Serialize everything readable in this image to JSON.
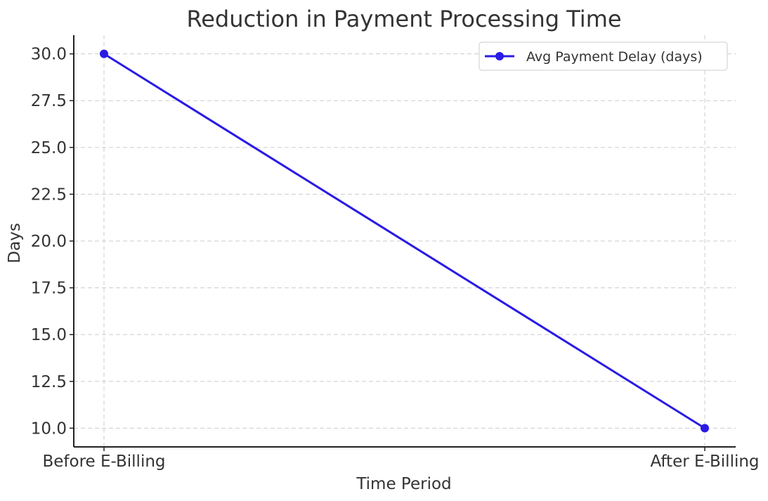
{
  "chart_data": {
    "type": "line",
    "title": "Reduction in Payment Processing Time",
    "xlabel": "Time Period",
    "ylabel": "Days",
    "categories": [
      "Before E-Billing",
      "After E-Billing"
    ],
    "series": [
      {
        "name": "Avg Payment Delay (days)",
        "values": [
          30,
          10
        ],
        "color": "#2a1be6"
      }
    ],
    "ylim": [
      9.0,
      31.0
    ],
    "yticks": [
      "10.0",
      "12.5",
      "15.0",
      "17.5",
      "20.0",
      "22.5",
      "25.0",
      "27.5",
      "30.0"
    ],
    "grid": true,
    "legend": "top-right"
  }
}
